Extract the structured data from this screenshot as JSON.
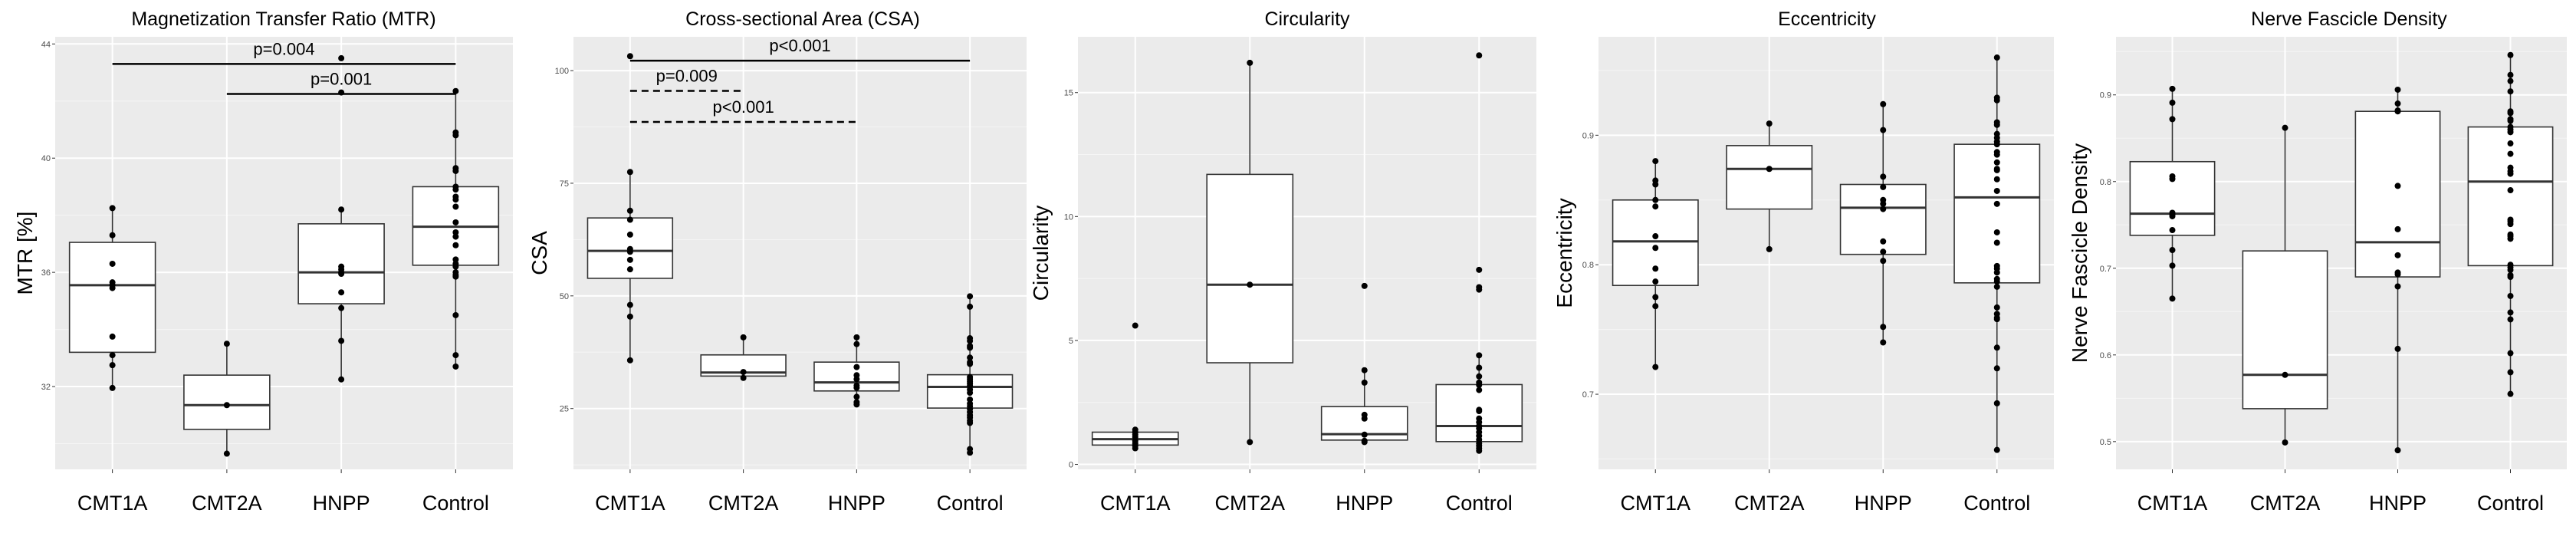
{
  "chart_data": [
    {
      "type": "boxplot",
      "title": "Magnetization Transfer Ratio (MTR)",
      "xlabel": "",
      "ylabel": "MTR [%]",
      "categories": [
        "CMT1A",
        "CMT2A",
        "HNPP",
        "Control"
      ],
      "yticks": [
        32,
        36,
        40,
        44
      ],
      "ylim": [
        29.1,
        44.25
      ],
      "grid": true,
      "boxes": [
        {
          "q1": 33.2,
          "median": 35.55,
          "q3": 37.05,
          "whisker_low": 31.95,
          "whisker_high": 38.25
        },
        {
          "q1": 30.5,
          "median": 31.35,
          "q3": 32.4,
          "whisker_low": 29.65,
          "whisker_high": 33.5
        },
        {
          "q1": 34.9,
          "median": 36.0,
          "q3": 37.7,
          "whisker_low": 32.25,
          "whisker_high": 38.2
        },
        {
          "q1": 36.25,
          "median": 37.6,
          "q3": 39.0,
          "whisker_low": 32.7,
          "whisker_high": 42.35
        }
      ],
      "points": [
        [
          38.25,
          37.3,
          36.3,
          35.65,
          35.55,
          35.45,
          33.75,
          33.1,
          32.75,
          31.95
        ],
        [
          33.5,
          31.35,
          29.65
        ],
        [
          43.5,
          42.3,
          38.2,
          36.2,
          36.1,
          36.0,
          35.95,
          35.3,
          34.75,
          33.6,
          32.25
        ],
        [
          42.35,
          40.9,
          40.8,
          39.65,
          39.55,
          39.0,
          38.9,
          38.65,
          38.55,
          38.3,
          37.75,
          37.4,
          37.25,
          36.95,
          36.45,
          36.3,
          36.2,
          36.0,
          35.9,
          35.85,
          34.5,
          33.1,
          32.7
        ]
      ],
      "annotations": [
        {
          "label": "p=0.004",
          "from": "CMT1A",
          "to": "Control",
          "y": 43.3,
          "style": "solid"
        },
        {
          "label": "p=0.001",
          "from": "CMT2A",
          "to": "Control",
          "y": 42.25,
          "style": "solid"
        }
      ]
    },
    {
      "type": "boxplot",
      "title": "Cross-sectional Area (CSA)",
      "xlabel": "",
      "ylabel": "CSA",
      "categories": [
        "CMT1A",
        "CMT2A",
        "HNPP",
        "Control"
      ],
      "yticks": [
        25,
        50,
        75,
        100
      ],
      "ylim": [
        11.5,
        107.5
      ],
      "grid": true,
      "boxes": [
        {
          "q1": 53.9,
          "median": 60.0,
          "q3": 67.3,
          "whisker_low": 35.7,
          "whisker_high": 77.5
        },
        {
          "q1": 32.2,
          "median": 33.0,
          "q3": 36.9,
          "whisker_low": 31.8,
          "whisker_high": 40.8
        },
        {
          "q1": 28.9,
          "median": 30.8,
          "q3": 35.3,
          "whisker_low": 25.9,
          "whisker_high": 40.8
        },
        {
          "q1": 25.1,
          "median": 29.8,
          "q3": 32.5,
          "whisker_low": 15.0,
          "whisker_high": 49.9
        }
      ],
      "points": [
        [
          103.2,
          77.5,
          68.9,
          66.9,
          63.6,
          60.4,
          59.8,
          58.0,
          55.9,
          48.0,
          45.4,
          35.7
        ],
        [
          40.8,
          33.1,
          31.8
        ],
        [
          40.8,
          39.3,
          34.2,
          32.4,
          31.5,
          30.1,
          29.6,
          27.6,
          26.4,
          25.9
        ],
        [
          49.9,
          47.6,
          40.6,
          40.0,
          38.9,
          38.5,
          36.3,
          35.3,
          34.9,
          32.0,
          31.5,
          31.0,
          30.5,
          30.0,
          29.2,
          28.5,
          27.0,
          26.1,
          25.5,
          24.9,
          24.2,
          23.5,
          23.0,
          22.3,
          21.8,
          16.0,
          15.2
        ]
      ],
      "annotations": [
        {
          "label": "p<0.001",
          "from": "CMT1A",
          "to": "Control",
          "y": 102.2,
          "style": "solid"
        },
        {
          "label": "p=0.009",
          "from": "CMT1A",
          "to": "CMT2A",
          "y": 95.5,
          "style": "dashed"
        },
        {
          "label": "p<0.001",
          "from": "CMT1A",
          "to": "HNPP",
          "y": 88.6,
          "style": "dashed"
        }
      ]
    },
    {
      "type": "boxplot",
      "title": "Circularity",
      "xlabel": "",
      "ylabel": "Circularity",
      "categories": [
        "CMT1A",
        "CMT2A",
        "HNPP",
        "Control"
      ],
      "yticks": [
        0,
        5,
        10,
        15
      ],
      "ylim": [
        -0.2,
        17.25
      ],
      "grid": true,
      "boxes": [
        {
          "q1": 0.78,
          "median": 1.02,
          "q3": 1.3,
          "whisker_low": 0.65,
          "whisker_high": 1.4
        },
        {
          "q1": 4.1,
          "median": 7.25,
          "q3": 11.7,
          "whisker_low": 0.9,
          "whisker_high": 16.2
        },
        {
          "q1": 0.98,
          "median": 1.22,
          "q3": 2.33,
          "whisker_low": 0.9,
          "whisker_high": 3.8
        },
        {
          "q1": 0.92,
          "median": 1.55,
          "q3": 3.22,
          "whisker_low": 0.55,
          "whisker_high": 4.4
        }
      ],
      "points": [
        [
          5.6,
          1.4,
          1.3,
          1.2,
          1.1,
          0.95,
          0.85,
          0.75,
          0.65
        ],
        [
          16.2,
          7.25,
          0.9
        ],
        [
          7.2,
          3.8,
          3.3,
          2.0,
          1.85,
          1.2,
          0.95,
          0.9
        ],
        [
          16.5,
          7.85,
          7.15,
          7.05,
          4.4,
          3.9,
          3.55,
          3.3,
          3.2,
          3.0,
          2.2,
          2.15,
          1.85,
          1.7,
          1.55,
          1.45,
          1.3,
          1.15,
          1.0,
          0.85,
          0.75,
          0.65,
          0.55
        ]
      ],
      "annotations": []
    },
    {
      "type": "boxplot",
      "title": "Eccentricity",
      "xlabel": "",
      "ylabel": "Eccentricity",
      "categories": [
        "CMT1A",
        "CMT2A",
        "HNPP",
        "Control"
      ],
      "yticks": [
        0.7,
        0.8,
        0.9
      ],
      "ylim": [
        0.642,
        0.976
      ],
      "grid": true,
      "boxes": [
        {
          "q1": 0.784,
          "median": 0.818,
          "q3": 0.85,
          "whisker_low": 0.721,
          "whisker_high": 0.88
        },
        {
          "q1": 0.843,
          "median": 0.874,
          "q3": 0.892,
          "whisker_low": 0.812,
          "whisker_high": 0.909
        },
        {
          "q1": 0.808,
          "median": 0.844,
          "q3": 0.862,
          "whisker_low": 0.74,
          "whisker_high": 0.924
        },
        {
          "q1": 0.786,
          "median": 0.852,
          "q3": 0.893,
          "whisker_low": 0.657,
          "whisker_high": 0.96
        }
      ],
      "points": [
        [
          0.88,
          0.865,
          0.862,
          0.85,
          0.845,
          0.822,
          0.813,
          0.797,
          0.787,
          0.775,
          0.768,
          0.721
        ],
        [
          0.909,
          0.874,
          0.812
        ],
        [
          0.924,
          0.904,
          0.868,
          0.86,
          0.85,
          0.847,
          0.843,
          0.818,
          0.81,
          0.803,
          0.752,
          0.74
        ],
        [
          0.96,
          0.929,
          0.927,
          0.91,
          0.908,
          0.901,
          0.898,
          0.895,
          0.893,
          0.887,
          0.885,
          0.879,
          0.874,
          0.873,
          0.866,
          0.857,
          0.847,
          0.825,
          0.817,
          0.799,
          0.797,
          0.794,
          0.789,
          0.787,
          0.783,
          0.767,
          0.762,
          0.759,
          0.758,
          0.736,
          0.72,
          0.693,
          0.657
        ]
      ],
      "annotations": []
    },
    {
      "type": "boxplot",
      "title": "Nerve Fascicle Density",
      "xlabel": "",
      "ylabel": "Nerve Fascicle Density",
      "categories": [
        "CMT1A",
        "CMT2A",
        "HNPP",
        "Control"
      ],
      "yticks": [
        0.5,
        0.6,
        0.7,
        0.8,
        0.9
      ],
      "ylim": [
        0.468,
        0.967
      ],
      "grid": true,
      "boxes": [
        {
          "q1": 0.738,
          "median": 0.763,
          "q3": 0.823,
          "whisker_low": 0.665,
          "whisker_high": 0.907
        },
        {
          "q1": 0.538,
          "median": 0.577,
          "q3": 0.72,
          "whisker_low": 0.499,
          "whisker_high": 0.862
        },
        {
          "q1": 0.69,
          "median": 0.73,
          "q3": 0.881,
          "whisker_low": 0.49,
          "whisker_high": 0.906
        },
        {
          "q1": 0.703,
          "median": 0.8,
          "q3": 0.863,
          "whisker_low": 0.555,
          "whisker_high": 0.946
        }
      ],
      "points": [
        [
          0.907,
          0.891,
          0.872,
          0.806,
          0.803,
          0.764,
          0.762,
          0.76,
          0.744,
          0.721,
          0.703,
          0.665
        ],
        [
          0.862,
          0.577,
          0.499
        ],
        [
          0.906,
          0.89,
          0.882,
          0.881,
          0.795,
          0.745,
          0.715,
          0.695,
          0.693,
          0.679,
          0.607,
          0.49
        ],
        [
          0.946,
          0.923,
          0.916,
          0.904,
          0.881,
          0.879,
          0.872,
          0.87,
          0.863,
          0.86,
          0.857,
          0.844,
          0.832,
          0.816,
          0.812,
          0.809,
          0.79,
          0.756,
          0.754,
          0.751,
          0.739,
          0.737,
          0.734,
          0.704,
          0.701,
          0.698,
          0.692,
          0.69,
          0.668,
          0.649,
          0.641,
          0.602,
          0.58,
          0.555
        ]
      ],
      "annotations": []
    }
  ]
}
